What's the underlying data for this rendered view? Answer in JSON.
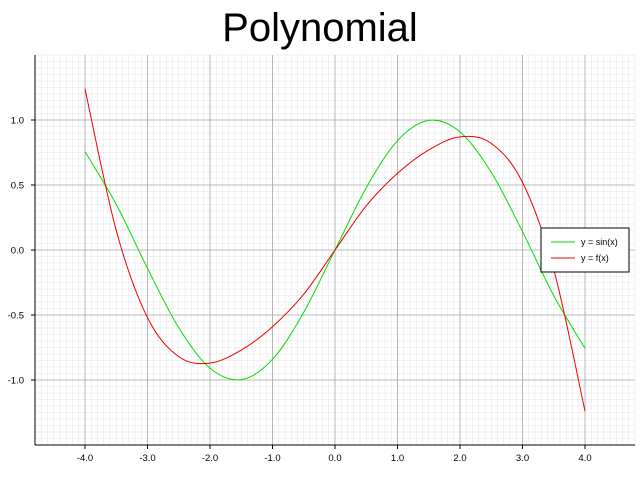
{
  "chart_data": {
    "type": "line",
    "title": "Polynomial",
    "xlabel": "",
    "ylabel": "",
    "xlim": [
      -4.8,
      4.8
    ],
    "ylim": [
      -1.5,
      1.5
    ],
    "grid": true,
    "minor_grid": true,
    "legend_position": "right",
    "x_ticks": [
      "-4.0",
      "-3.0",
      "-2.0",
      "-1.0",
      "0.0",
      "1.0",
      "2.0",
      "3.0",
      "4.0"
    ],
    "y_ticks": [
      "1.0",
      "0.5",
      "0.0",
      "-0.5",
      "-1.0"
    ],
    "x": [
      -4.0,
      -3.5,
      -3.0,
      -2.5,
      -2.0,
      -1.5,
      -1.0,
      -0.5,
      0.0,
      0.5,
      1.0,
      1.5,
      2.0,
      2.5,
      3.0,
      3.5,
      4.0
    ],
    "series": [
      {
        "name": "y = sin(x)",
        "color": "#00dd00",
        "values": [
          0.757,
          0.351,
          -0.141,
          -0.598,
          -0.909,
          -0.997,
          -0.841,
          -0.479,
          0.0,
          0.479,
          0.841,
          0.997,
          0.909,
          0.598,
          0.141,
          -0.351,
          -0.757
        ]
      },
      {
        "name": "y = f(x)",
        "color": "#ee0000",
        "values": [
          1.24,
          0.15,
          -0.52,
          -0.82,
          -0.87,
          -0.77,
          -0.59,
          -0.34,
          0.0,
          0.34,
          0.59,
          0.77,
          0.87,
          0.82,
          0.52,
          -0.15,
          -1.24
        ]
      }
    ]
  }
}
